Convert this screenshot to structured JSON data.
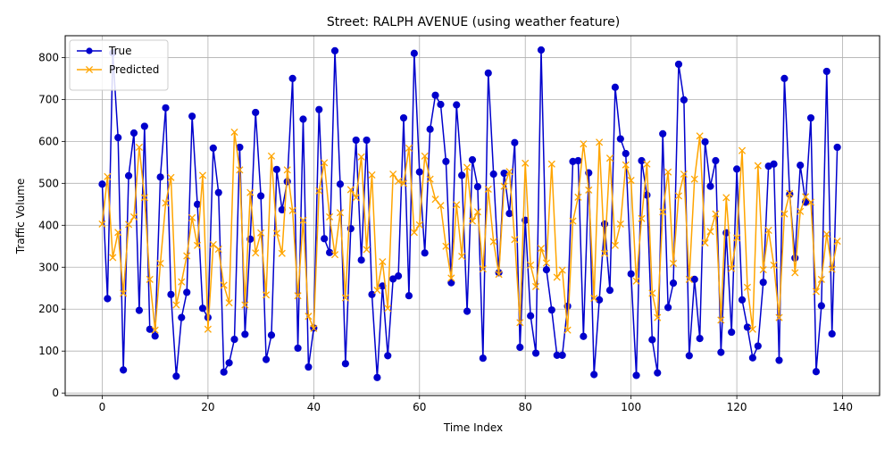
{
  "chart_data": {
    "type": "line",
    "title": "Street: RALPH AVENUE (using weather feature)",
    "xlabel": "Time Index",
    "ylabel": "Traffic Volume",
    "xlim": [
      -7,
      147
    ],
    "ylim": [
      -6,
      852
    ],
    "xticks": [
      0,
      20,
      40,
      60,
      80,
      100,
      120,
      140
    ],
    "yticks": [
      0,
      100,
      200,
      300,
      400,
      500,
      600,
      700,
      800
    ],
    "grid": true,
    "legend_position": "top-left",
    "x": [
      0,
      1,
      2,
      3,
      4,
      5,
      6,
      7,
      8,
      9,
      10,
      11,
      12,
      13,
      14,
      15,
      16,
      17,
      18,
      19,
      20,
      21,
      22,
      23,
      24,
      25,
      26,
      27,
      28,
      29,
      30,
      31,
      32,
      33,
      34,
      35,
      36,
      37,
      38,
      39,
      40,
      41,
      42,
      43,
      44,
      45,
      46,
      47,
      48,
      49,
      50,
      51,
      52,
      53,
      54,
      55,
      56,
      57,
      58,
      59,
      60,
      61,
      62,
      63,
      64,
      65,
      66,
      67,
      68,
      69,
      70,
      71,
      72,
      73,
      74,
      75,
      76,
      77,
      78,
      79,
      80,
      81,
      82,
      83,
      84,
      85,
      86,
      87,
      88,
      89,
      90,
      91,
      92,
      93,
      94,
      95,
      96,
      97,
      98,
      99,
      100,
      101,
      102,
      103,
      104,
      105,
      106,
      107,
      108,
      109,
      110,
      111,
      112,
      113,
      114,
      115,
      116,
      117,
      118,
      119,
      120,
      121,
      122,
      123,
      124,
      125,
      126,
      127,
      128,
      129,
      130,
      131,
      132,
      133,
      134,
      135,
      136,
      137,
      138,
      139
    ],
    "series": [
      {
        "name": "True",
        "color": "#0000cc",
        "marker": "circle",
        "values": [
          498,
          225,
          811,
          609,
          55,
          518,
          620,
          197,
          636,
          152,
          136,
          515,
          680,
          235,
          40,
          180,
          240,
          660,
          450,
          202,
          180,
          584,
          478,
          50,
          72,
          128,
          586,
          140,
          367,
          669,
          470,
          80,
          138,
          533,
          437,
          504,
          750,
          107,
          653,
          62,
          155,
          676,
          368,
          335,
          816,
          498,
          70,
          392,
          603,
          317,
          603,
          235,
          37,
          255,
          89,
          272,
          279,
          656,
          232,
          810,
          527,
          334,
          629,
          710,
          688,
          552,
          263,
          687,
          519,
          195,
          556,
          492,
          83,
          763,
          522,
          287,
          524,
          428,
          597,
          109,
          412,
          184,
          95,
          818,
          294,
          198,
          90,
          90,
          207,
          552,
          554,
          135,
          525,
          44,
          222,
          403,
          245,
          729,
          606,
          571,
          284,
          42,
          554,
          472,
          127,
          48,
          618,
          204,
          262,
          784,
          699,
          89,
          271,
          130,
          599,
          493,
          554,
          97,
          382,
          145,
          534,
          222,
          157,
          84,
          112,
          264,
          541,
          546,
          78,
          750,
          474,
          322,
          543,
          455,
          656,
          51,
          208,
          767,
          141,
          586
        ]
      },
      {
        "name": "Predicted",
        "color": "#ffa500",
        "marker": "x",
        "values": [
          403,
          516,
          323,
          383,
          238,
          402,
          420,
          586,
          466,
          271,
          150,
          309,
          453,
          514,
          210,
          265,
          327,
          418,
          352,
          519,
          152,
          354,
          343,
          257,
          215,
          622,
          532,
          210,
          478,
          334,
          382,
          234,
          565,
          381,
          333,
          532,
          435,
          232,
          412,
          183,
          154,
          482,
          549,
          420,
          330,
          430,
          227,
          485,
          466,
          563,
          342,
          520,
          245,
          313,
          202,
          522,
          505,
          500,
          584,
          383,
          401,
          565,
          510,
          462,
          447,
          350,
          274,
          449,
          326,
          538,
          410,
          432,
          296,
          486,
          361,
          283,
          493,
          528,
          366,
          168,
          548,
          305,
          254,
          345,
          310,
          546,
          276,
          293,
          150,
          410,
          467,
          594,
          484,
          226,
          598,
          333,
          560,
          352,
          403,
          544,
          507,
          267,
          416,
          546,
          238,
          180,
          432,
          527,
          309,
          470,
          522,
          271,
          510,
          613,
          358,
          385,
          427,
          174,
          466,
          297,
          370,
          578,
          252,
          152,
          542,
          294,
          388,
          305,
          180,
          427,
          476,
          287,
          433,
          468,
          455,
          242,
          271,
          379,
          295,
          362
        ]
      }
    ]
  }
}
